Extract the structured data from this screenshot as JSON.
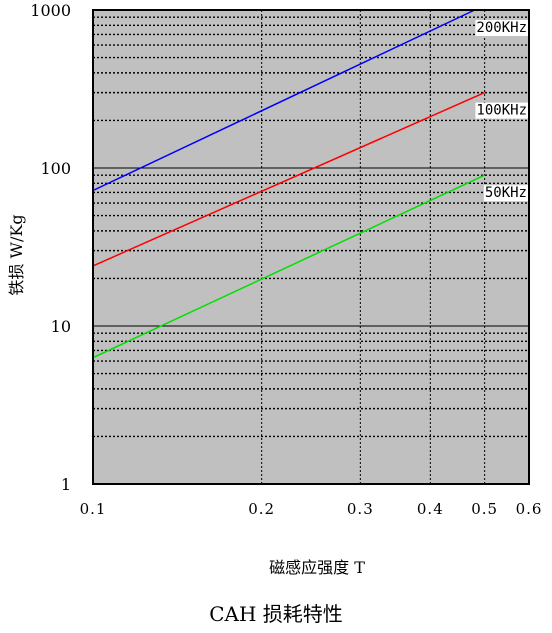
{
  "chart_data": {
    "type": "line",
    "title": "CAH 损耗特性",
    "xlabel": "磁感应强度 T",
    "ylabel": "铁损 W/Kg",
    "x_scale": "log",
    "y_scale": "log",
    "xlim": [
      0.1,
      0.6
    ],
    "ylim": [
      1,
      1000
    ],
    "x_ticks": [
      0.1,
      0.2,
      0.3,
      0.4,
      0.5,
      0.6
    ],
    "x_tick_labels": [
      "0.1",
      "0.2",
      "0.3",
      "0.4",
      "0.5",
      "0.6"
    ],
    "y_ticks": [
      1,
      10,
      100,
      1000
    ],
    "y_tick_labels": [
      "1",
      "10",
      "100",
      "1000"
    ],
    "grid": true,
    "series": [
      {
        "name": "200KHz",
        "color": "#0000ff",
        "x": [
          0.1,
          0.48
        ],
        "y": [
          72,
          1000
        ]
      },
      {
        "name": "100KHz",
        "color": "#ff0000",
        "x": [
          0.1,
          0.5
        ],
        "y": [
          24,
          300
        ]
      },
      {
        "name": "50KHz",
        "color": "#00e000",
        "x": [
          0.1,
          0.5
        ],
        "y": [
          6.3,
          90
        ]
      }
    ]
  }
}
